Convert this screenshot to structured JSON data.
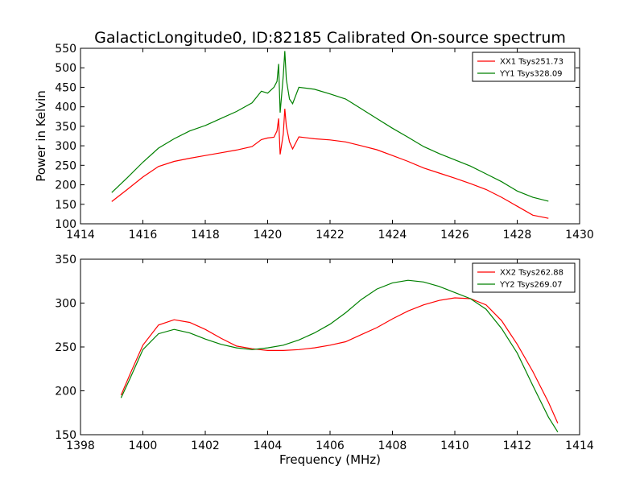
{
  "title": "GalacticLongitude0, ID:82185 Calibrated On-source spectrum",
  "chart_data": [
    {
      "type": "line",
      "title": "GalacticLongitude0, ID:82185 Calibrated On-source spectrum",
      "xlabel": "",
      "ylabel": "Power in Kelvin",
      "xlim": [
        1414,
        1430
      ],
      "ylim": [
        100,
        550
      ],
      "xticks": [
        1414,
        1416,
        1418,
        1420,
        1422,
        1424,
        1426,
        1428,
        1430
      ],
      "yticks": [
        100,
        150,
        200,
        250,
        300,
        350,
        400,
        450,
        500,
        550
      ],
      "legend_position": "top-right",
      "grid": false,
      "series": [
        {
          "name": "XX1 Tsys251.73",
          "color": "#ff0000",
          "x": [
            1415.0,
            1415.5,
            1416.0,
            1416.5,
            1417.0,
            1417.5,
            1418.0,
            1418.5,
            1419.0,
            1419.5,
            1419.8,
            1420.0,
            1420.2,
            1420.3,
            1420.35,
            1420.4,
            1420.5,
            1420.55,
            1420.6,
            1420.7,
            1420.8,
            1421.0,
            1421.5,
            1422.0,
            1422.5,
            1423.0,
            1423.5,
            1424.0,
            1424.5,
            1425.0,
            1425.5,
            1426.0,
            1426.5,
            1427.0,
            1427.5,
            1428.0,
            1428.5,
            1429.0
          ],
          "values": [
            157,
            188,
            220,
            247,
            260,
            268,
            275,
            282,
            289,
            298,
            316,
            320,
            322,
            338,
            370,
            278,
            330,
            395,
            350,
            310,
            292,
            323,
            318,
            315,
            310,
            300,
            290,
            275,
            260,
            243,
            230,
            217,
            203,
            188,
            168,
            145,
            122,
            114
          ]
        },
        {
          "name": "YY1 Tsys328.09",
          "color": "#008000",
          "x": [
            1415.0,
            1415.5,
            1416.0,
            1416.5,
            1417.0,
            1417.5,
            1418.0,
            1418.5,
            1419.0,
            1419.5,
            1419.8,
            1420.0,
            1420.2,
            1420.3,
            1420.35,
            1420.4,
            1420.5,
            1420.55,
            1420.6,
            1420.7,
            1420.8,
            1421.0,
            1421.5,
            1422.0,
            1422.5,
            1423.0,
            1423.5,
            1424.0,
            1424.5,
            1425.0,
            1425.5,
            1426.0,
            1426.5,
            1427.0,
            1427.5,
            1428.0,
            1428.5,
            1429.0
          ],
          "values": [
            180,
            218,
            258,
            294,
            318,
            338,
            352,
            370,
            388,
            410,
            440,
            435,
            450,
            465,
            510,
            385,
            480,
            543,
            470,
            420,
            408,
            450,
            445,
            433,
            420,
            395,
            370,
            345,
            322,
            298,
            280,
            264,
            248,
            228,
            208,
            184,
            168,
            158
          ]
        }
      ]
    },
    {
      "type": "line",
      "title": "",
      "xlabel": "Frequency (MHz)",
      "ylabel": "",
      "xlim": [
        1398,
        1414
      ],
      "ylim": [
        150,
        350
      ],
      "xticks": [
        1398,
        1400,
        1402,
        1404,
        1406,
        1408,
        1410,
        1412,
        1414
      ],
      "yticks": [
        150,
        200,
        250,
        300,
        350
      ],
      "legend_position": "top-right",
      "grid": false,
      "series": [
        {
          "name": "XX2 Tsys262.88",
          "color": "#ff0000",
          "x": [
            1399.3,
            1399.6,
            1400.0,
            1400.5,
            1401.0,
            1401.5,
            1402.0,
            1402.5,
            1403.0,
            1403.5,
            1404.0,
            1404.5,
            1405.0,
            1405.5,
            1406.0,
            1406.5,
            1407.0,
            1407.5,
            1408.0,
            1408.5,
            1409.0,
            1409.5,
            1410.0,
            1410.5,
            1411.0,
            1411.5,
            1412.0,
            1412.5,
            1413.0,
            1413.3
          ],
          "values": [
            195,
            220,
            252,
            275,
            281,
            278,
            270,
            260,
            251,
            248,
            246,
            246,
            247,
            249,
            252,
            256,
            264,
            272,
            282,
            291,
            298,
            303,
            306,
            305,
            298,
            280,
            253,
            222,
            187,
            163
          ]
        },
        {
          "name": "YY2 Tsys269.07",
          "color": "#008000",
          "x": [
            1399.3,
            1399.6,
            1400.0,
            1400.5,
            1401.0,
            1401.5,
            1402.0,
            1402.5,
            1403.0,
            1403.5,
            1404.0,
            1404.5,
            1405.0,
            1405.5,
            1406.0,
            1406.5,
            1407.0,
            1407.5,
            1408.0,
            1408.5,
            1409.0,
            1409.5,
            1410.0,
            1410.5,
            1411.0,
            1411.5,
            1412.0,
            1412.5,
            1413.0,
            1413.3
          ],
          "values": [
            192,
            215,
            247,
            265,
            270,
            266,
            259,
            253,
            249,
            247,
            249,
            252,
            258,
            266,
            276,
            289,
            304,
            316,
            323,
            326,
            324,
            319,
            312,
            305,
            293,
            271,
            243,
            206,
            170,
            153
          ]
        }
      ]
    }
  ]
}
